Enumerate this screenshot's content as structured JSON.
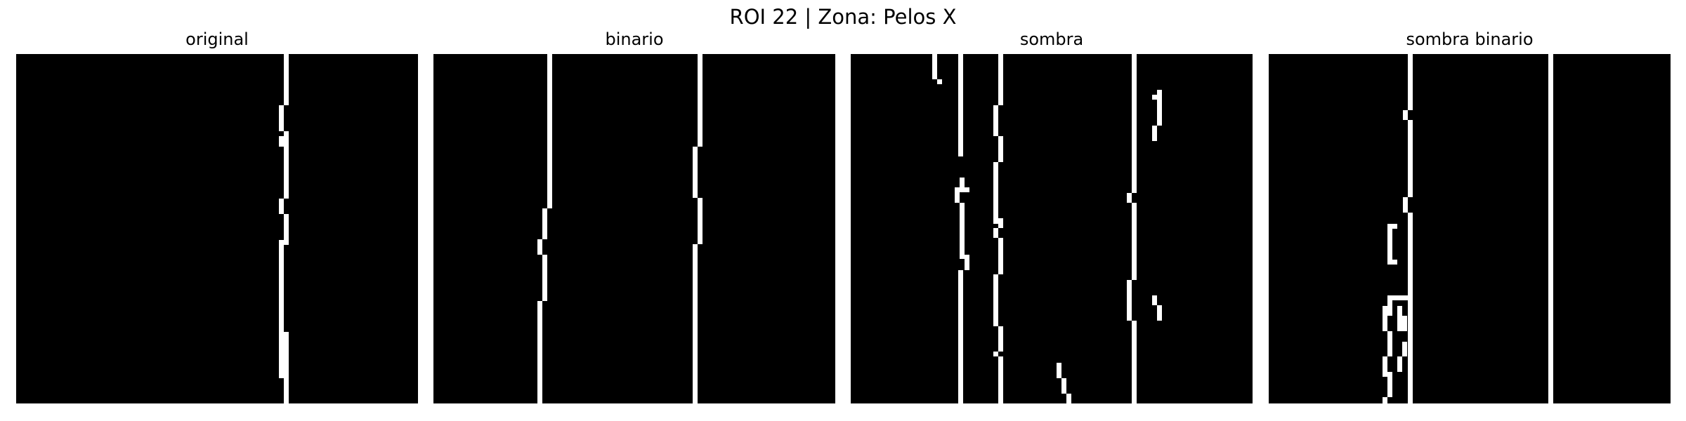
{
  "figure": {
    "title": "ROI 22 | Zona:  Pelos X"
  },
  "panels": [
    {
      "title": "original"
    },
    {
      "title": "binario"
    },
    {
      "title": "sombra"
    },
    {
      "title": "sombra binario"
    }
  ],
  "colors": {
    "background": "#ffffff",
    "image_bg": "#000000",
    "mask": "#ffffff"
  }
}
